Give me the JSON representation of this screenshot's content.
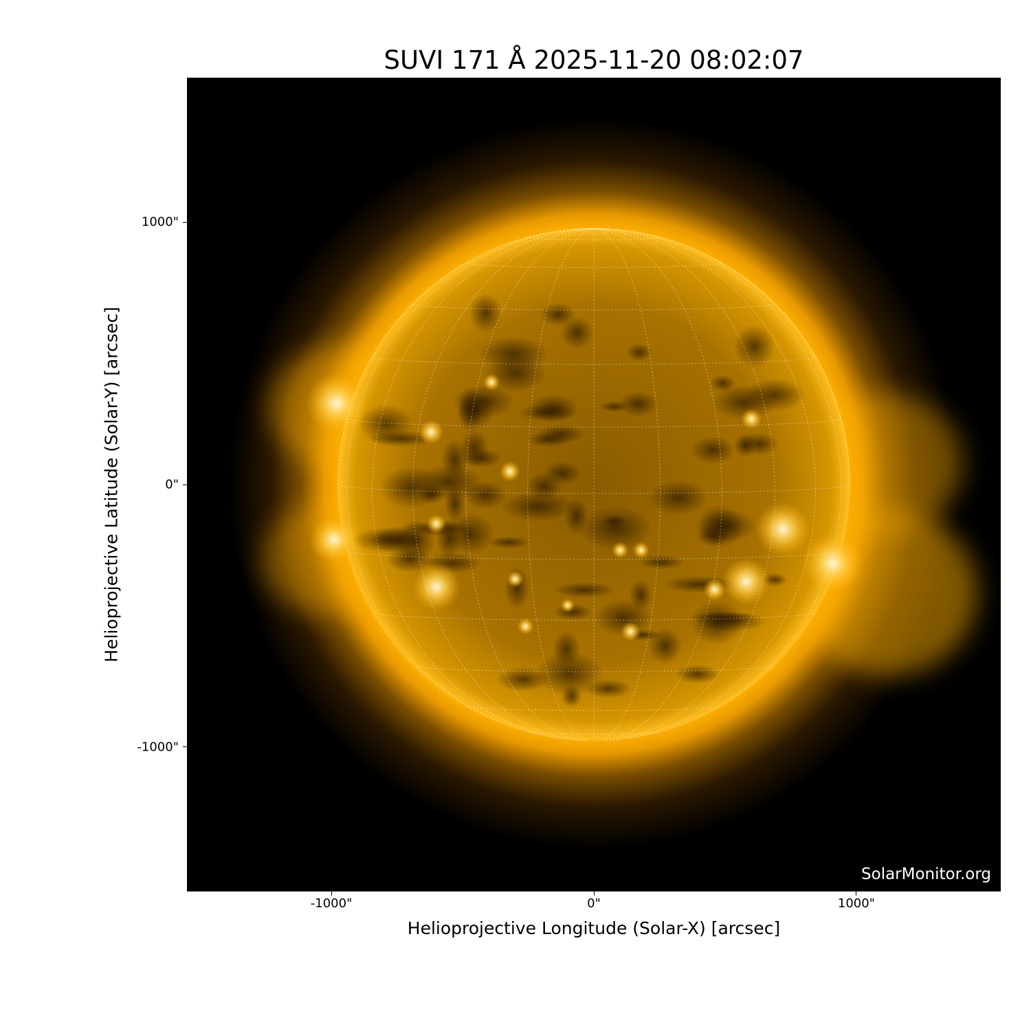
{
  "title": "SUVI 171 Å 2025-11-20 08:02:07",
  "plot": {
    "xlabel": "Helioprojective Longitude (Solar-X) [arcsec]",
    "ylabel": "Helioprojective Latitude (Solar-Y) [arcsec]",
    "xticks": [
      "-1000\"",
      "0\"",
      "1000\""
    ],
    "yticks": [
      "1000\"",
      "0\"",
      "-1000\""
    ],
    "xtick_values": [
      -1000,
      0,
      1000
    ],
    "ytick_values": [
      1000,
      0,
      -1000
    ],
    "xlim": [
      -1550,
      1550
    ],
    "ylim": [
      -1550,
      1550
    ],
    "solar_radius_arcsec": 975,
    "grid_spacing_deg": 15,
    "colormap": "SDO/SUVI 171 gold",
    "colors": {
      "background": "#000000",
      "disk": "#c98a00",
      "bright": "#fff4c0",
      "grid": "#ffffff"
    }
  },
  "watermark": "SolarMonitor.org"
}
